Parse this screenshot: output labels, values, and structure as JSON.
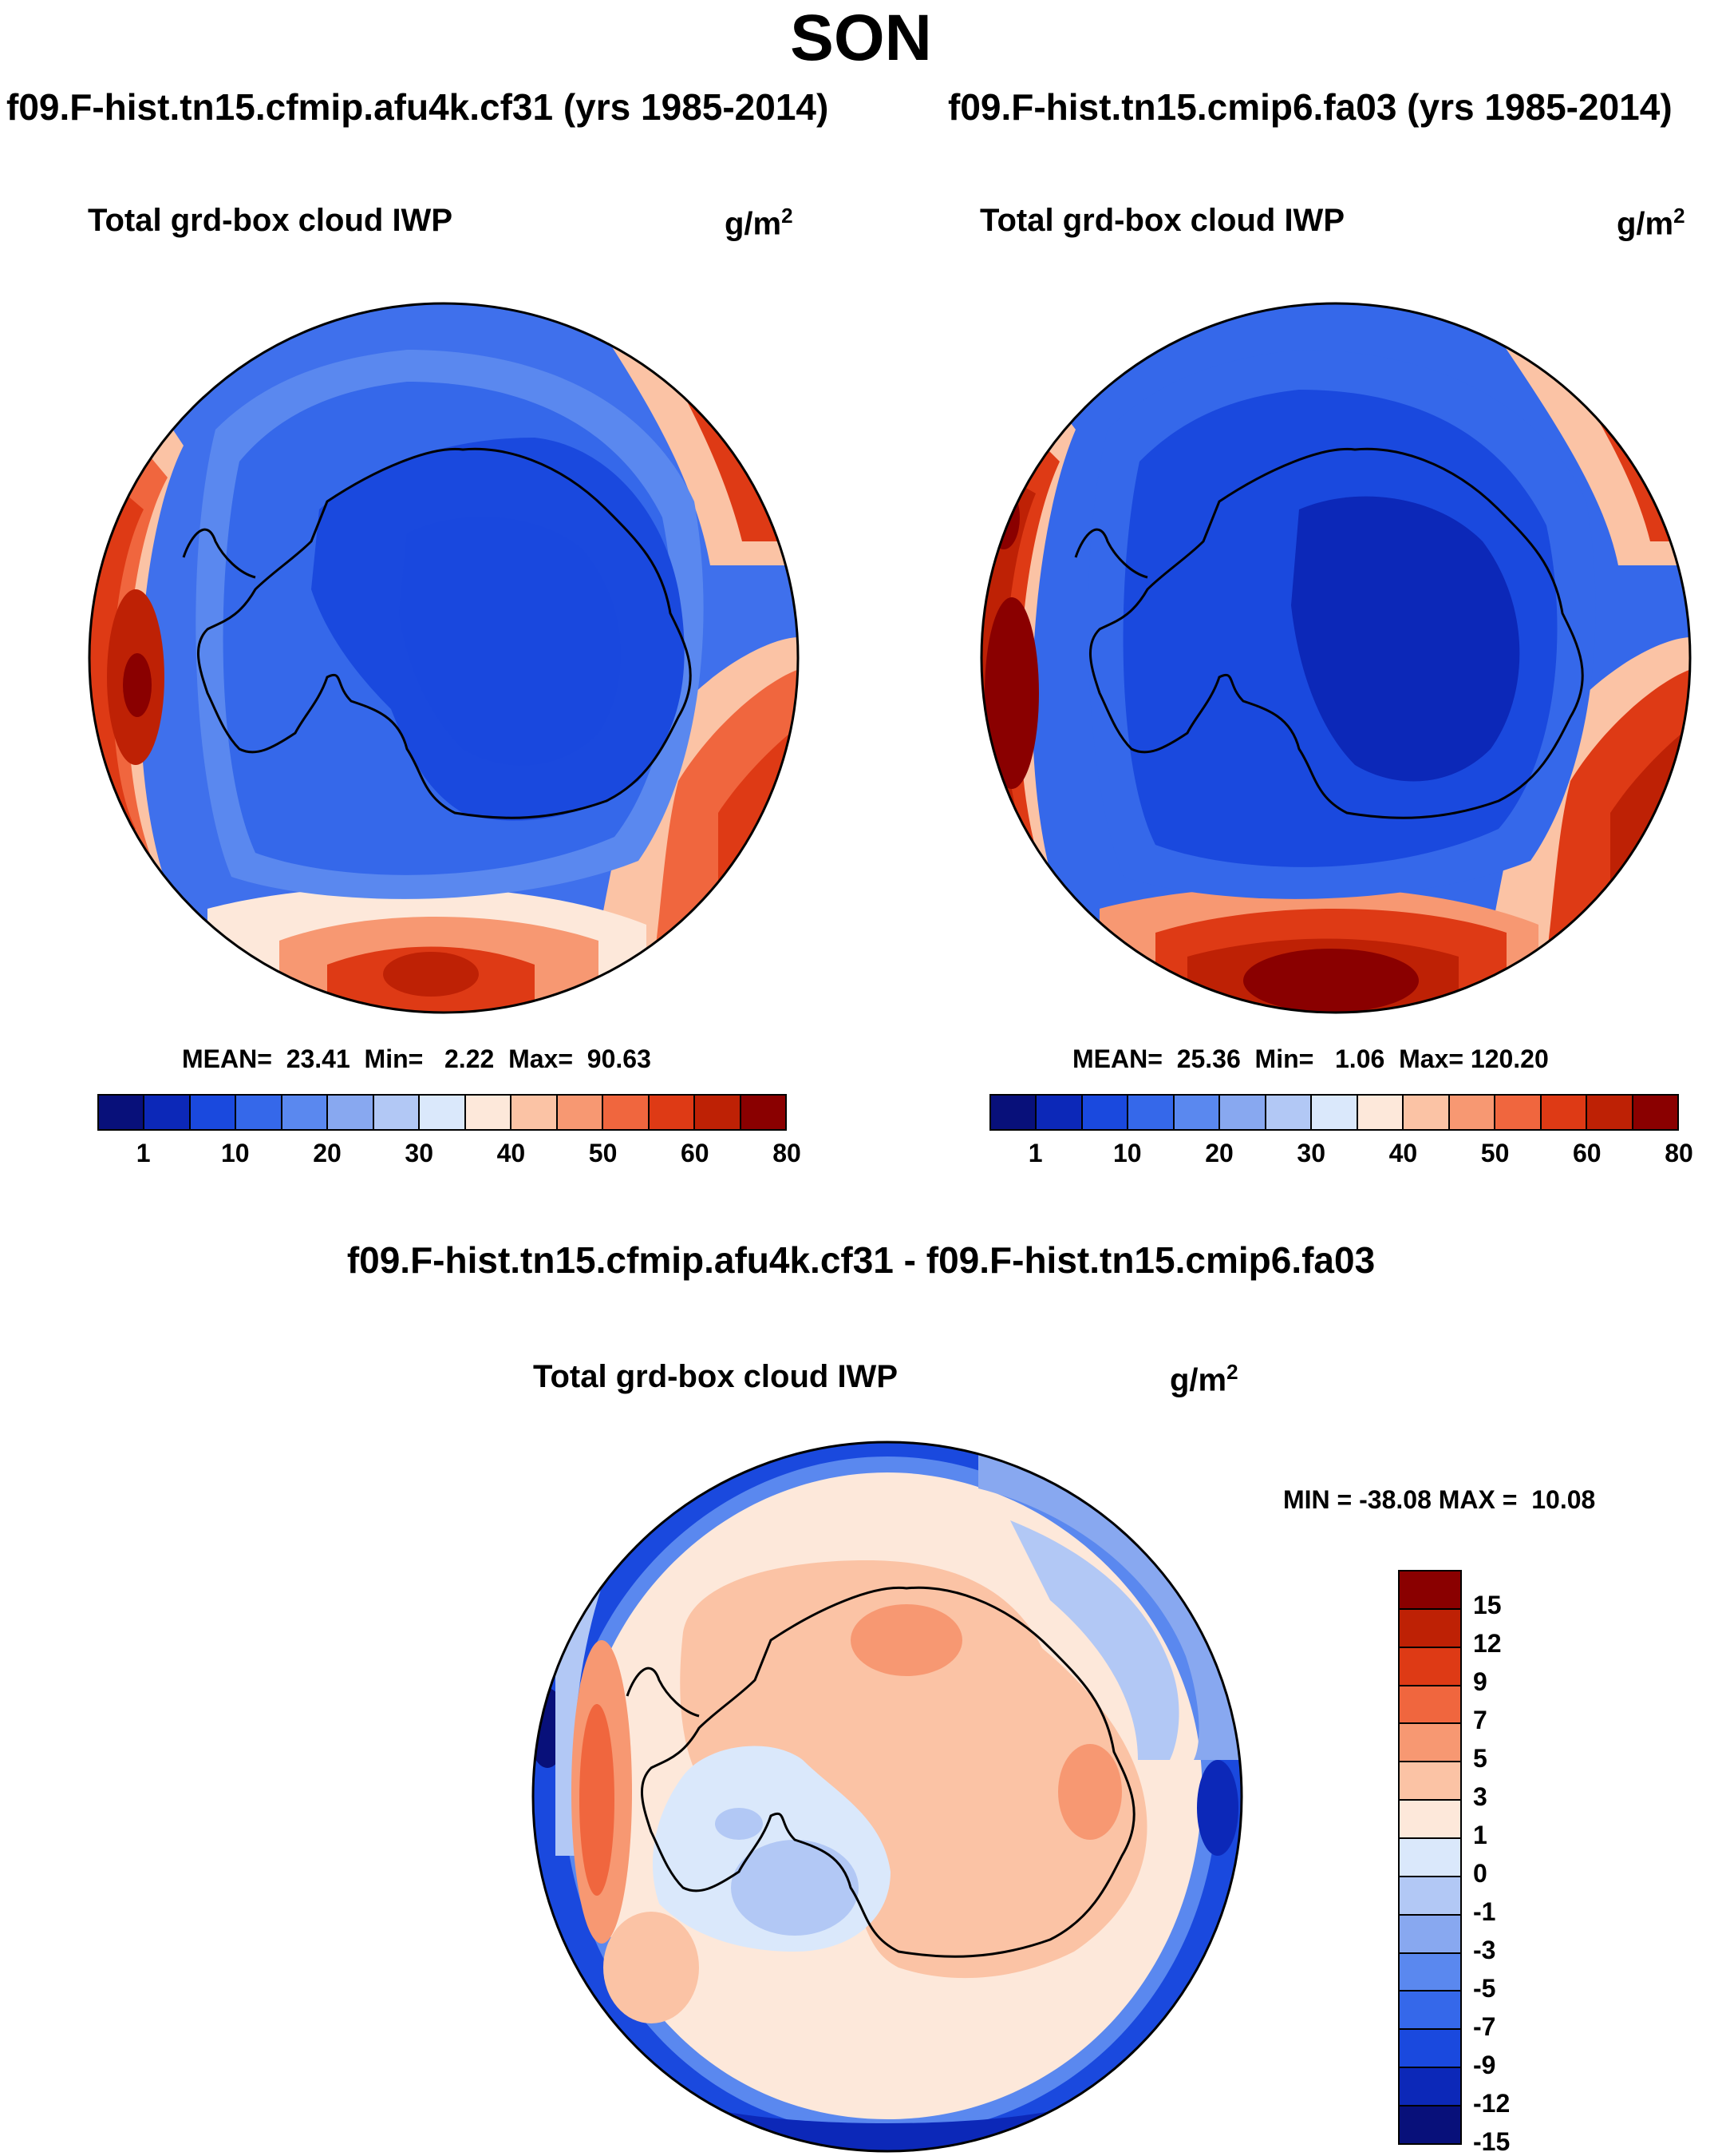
{
  "season": "SON",
  "left_panel": {
    "case_title": "f09.F-hist.tn15.cfmip.afu4k.cf31 (yrs 1985-2014)",
    "variable": "Total grd-box cloud IWP",
    "units_base": "g/m",
    "units_exp": "2",
    "stats": "MEAN=  23.41  Min=   2.22  Max=  90.63",
    "stats_values": {
      "mean": 23.41,
      "min": 2.22,
      "max": 90.63
    }
  },
  "right_panel": {
    "case_title": "f09.F-hist.tn15.cmip6.fa03 (yrs 1985-2014)",
    "variable": "Total grd-box cloud IWP",
    "units_base": "g/m",
    "units_exp": "2",
    "stats": "MEAN=  25.36  Min=   1.06  Max= 120.20",
    "stats_values": {
      "mean": 25.36,
      "min": 1.06,
      "max": 120.2
    }
  },
  "diff_panel": {
    "title": "f09.F-hist.tn15.cfmip.afu4k.cf31 - f09.F-hist.tn15.cmip6.fa03",
    "variable": "Total grd-box cloud IWP",
    "units_base": "g/m",
    "units_exp": "2",
    "stats": "MIN = -38.08 MAX =  10.08",
    "stats_values": {
      "min": -38.08,
      "max": 10.08
    }
  },
  "colorbar_abs": {
    "colors": [
      "#08107a",
      "#0c28b8",
      "#1a49de",
      "#3568ea",
      "#5a88ef",
      "#88a8f0",
      "#b2c8f5",
      "#dae8fb",
      "#fde8da",
      "#fbc3a5",
      "#f79872",
      "#f0663e",
      "#de3a15",
      "#be2105",
      "#8a0000"
    ],
    "labels": [
      "1",
      "10",
      "20",
      "30",
      "40",
      "50",
      "60",
      "80"
    ]
  },
  "colorbar_diff": {
    "colors": [
      "#8a0000",
      "#be2105",
      "#de3a15",
      "#f0663e",
      "#f79872",
      "#fbc3a5",
      "#fde8da",
      "#dae8fb",
      "#b2c8f5",
      "#88a8f0",
      "#5a88ef",
      "#3568ea",
      "#1a49de",
      "#0c28b8",
      "#08107a"
    ],
    "labels": [
      "15",
      "12",
      "9",
      "7",
      "5",
      "3",
      "1",
      "0",
      "-1",
      "-3",
      "-5",
      "-7",
      "-9",
      "-12",
      "-15"
    ]
  }
}
